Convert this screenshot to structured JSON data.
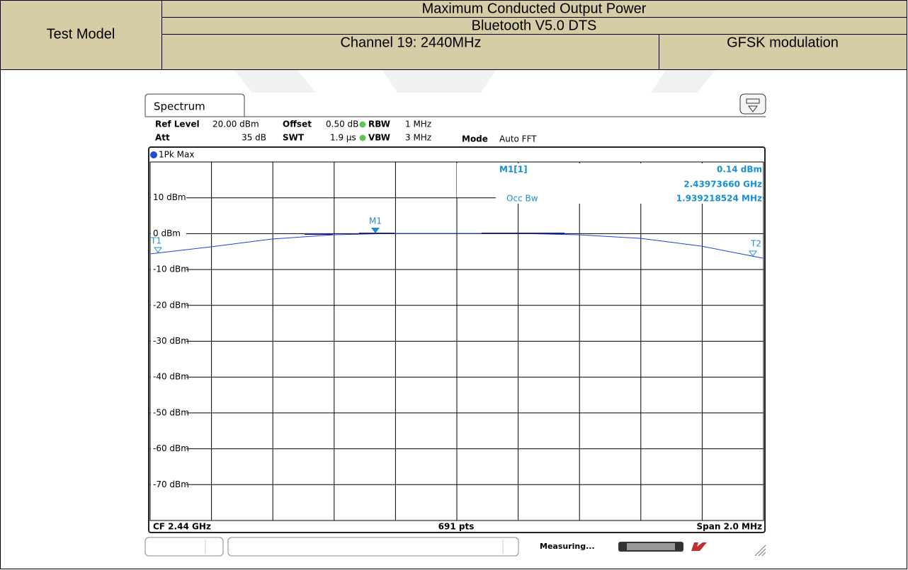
{
  "header": {
    "label": "Test Model",
    "title": "Maximum Conducted Output Power",
    "subtitle": "Bluetooth V5.0 DTS",
    "channel": "Channel 19: 2440MHz",
    "modulation": "GFSK modulation"
  },
  "analyzer": {
    "tab": "Spectrum",
    "settings": {
      "ref_level_label": "Ref Level",
      "ref_level": "20.00 dBm",
      "offset_label": "Offset",
      "offset": "0.50 dB",
      "rbw_label": "RBW",
      "rbw": "1 MHz",
      "att_label": "Att",
      "att": "35 dB",
      "swt_label": "SWT",
      "swt": "1.9 µs",
      "vbw_label": "VBW",
      "vbw": "3 MHz",
      "mode_label": "Mode",
      "mode": "Auto FFT"
    },
    "trace": "1Pk Max",
    "y_labels": [
      "10 dBm",
      "0 dBm",
      "-10 dBm",
      "-20 dBm",
      "-30 dBm",
      "-40 dBm",
      "-50 dBm",
      "-60 dBm",
      "-70 dBm"
    ],
    "markers": {
      "m1_name": "M1[1]",
      "m1_level": "0.14 dBm",
      "m1_freq": "2.43973660 GHz",
      "occ_label": "Occ Bw",
      "occ_value": "1.939218524 MHz",
      "m1": "M1",
      "t1": "T1",
      "t2": "T2"
    },
    "footer": {
      "cf": "CF 2.44 GHz",
      "points": "691 pts",
      "span": "Span 2.0 MHz"
    },
    "status": "Measuring..."
  }
}
